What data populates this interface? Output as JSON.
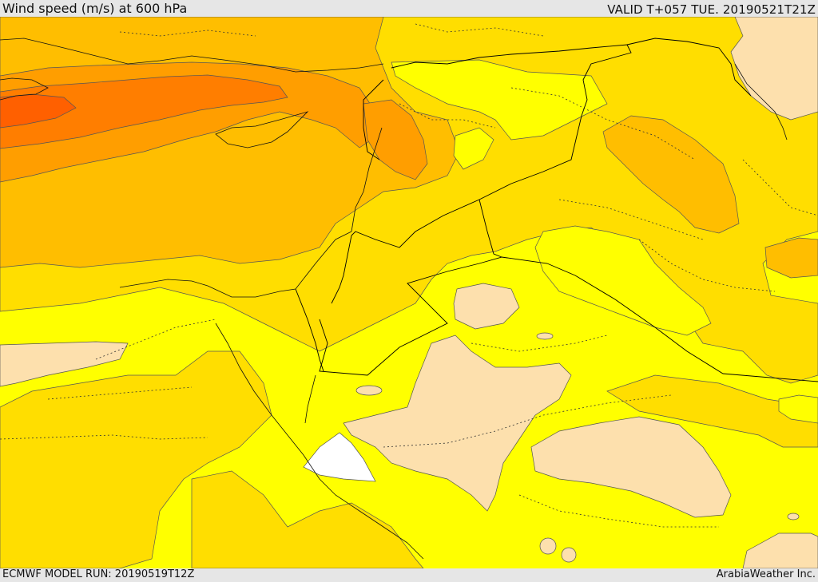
{
  "header": {
    "title": "Wind speed (m/s) at 600 hPa",
    "valid": "VALID T+057 TUE. 20190521T21Z"
  },
  "footer": {
    "model_run": "ECMWF MODEL RUN: 20190519T12Z",
    "credit": "ArabiaWeather Inc."
  },
  "map": {
    "field": "Wind speed at 600 hPa",
    "units": "m/s",
    "fill_colors": {
      "lowest": "#ffffff",
      "very_low": "#fde0ad",
      "low": "#ffff00",
      "moderate": "#ffde00",
      "elevated": "#ffbe00",
      "high": "#ff9e00",
      "very_high": "#ff7e00",
      "highest": "#ff6000"
    },
    "contour_color": "#555555",
    "border_color": "#000000"
  }
}
